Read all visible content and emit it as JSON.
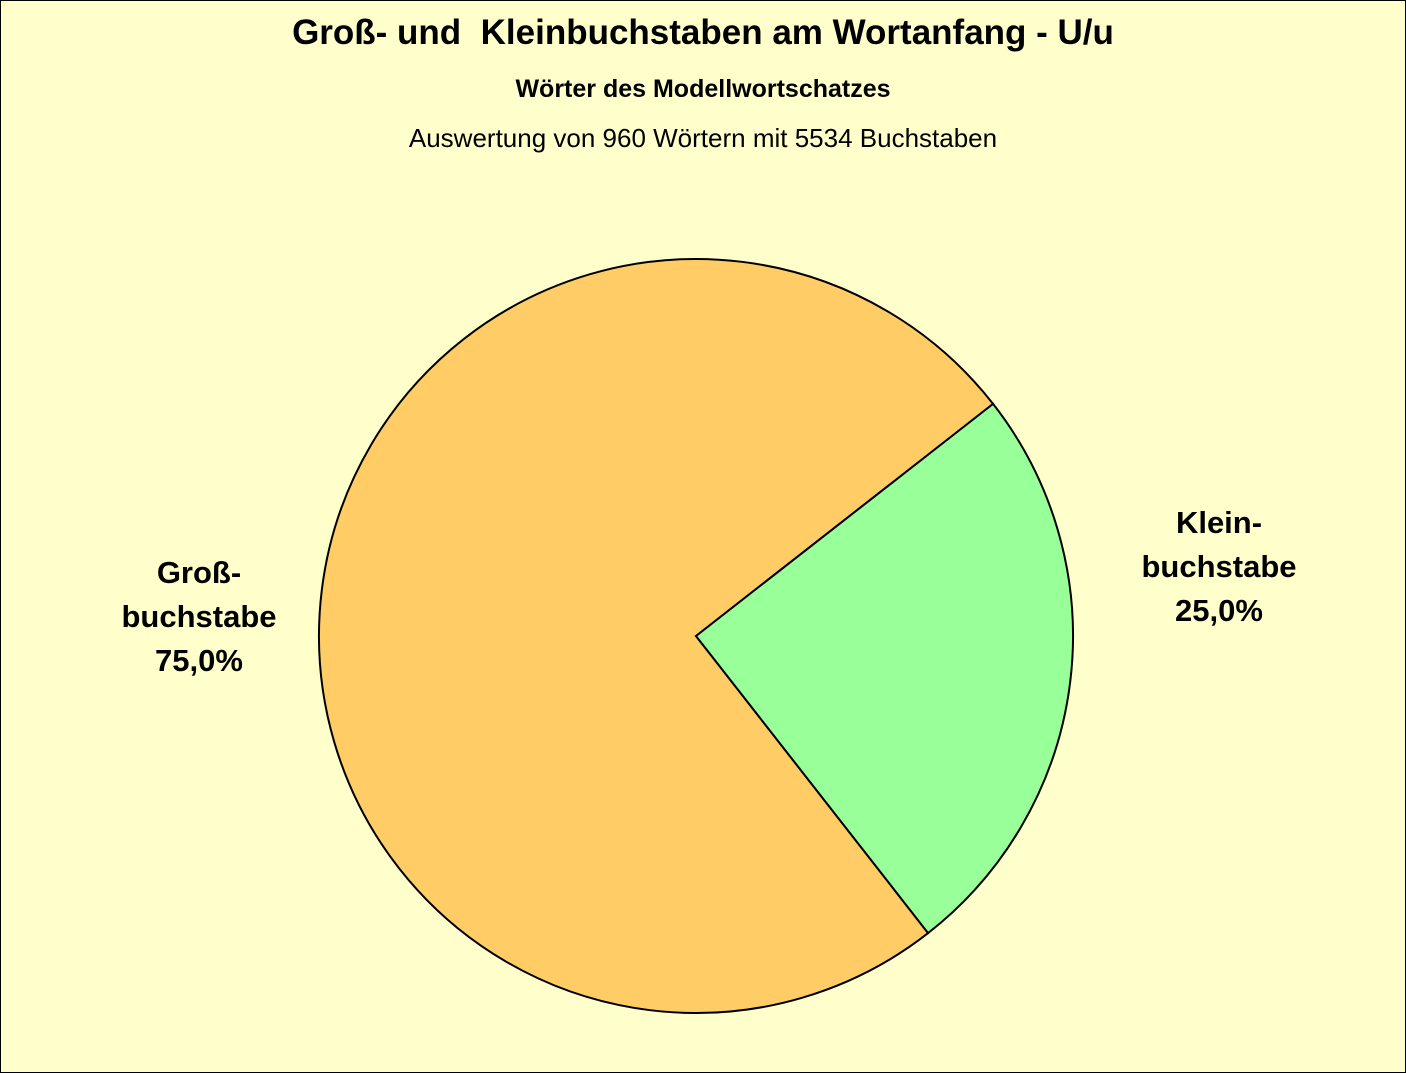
{
  "chart_data": {
    "type": "pie",
    "title": "Groß- und  Kleinbuchstaben am Wortanfang - U/u",
    "subtitle": "Wörter des Modellwortschatzes",
    "subtitle2": "Auswertung von 960 Wörtern mit 5534 Buchstaben",
    "categories": [
      "Groß-\nbuchstabe",
      "Klein-\nbuchstabe"
    ],
    "values": [
      75,
      25
    ],
    "value_labels": [
      "75,0%",
      "25,0%"
    ],
    "colors": [
      "#FFCC66",
      "#99FF99"
    ]
  }
}
